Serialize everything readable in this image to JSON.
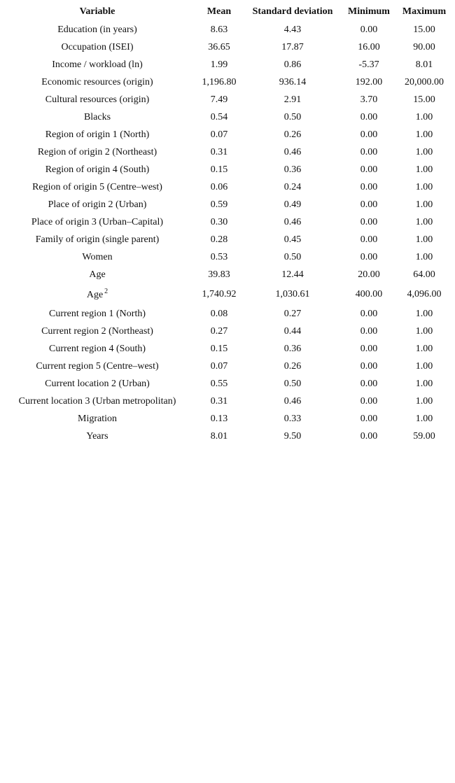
{
  "headers": [
    "Variable",
    "Mean",
    "Standard deviation",
    "Minimum",
    "Maximum"
  ],
  "rows": [
    {
      "variable": "Education (in years)",
      "mean": "8.63",
      "sd": "4.43",
      "min": "0.00",
      "max": "15.00"
    },
    {
      "variable": "Occupation (ISEI)",
      "mean": "36.65",
      "sd": "17.87",
      "min": "16.00",
      "max": "90.00"
    },
    {
      "variable": "Income / workload (ln)",
      "mean": "1.99",
      "sd": "0.86",
      "min": "-5.37",
      "max": "8.01"
    },
    {
      "variable": "Economic resources (origin)",
      "mean": "1,196.80",
      "sd": "936.14",
      "min": "192.00",
      "max": "20,000.00"
    },
    {
      "variable": "Cultural resources (origin)",
      "mean": "7.49",
      "sd": "2.91",
      "min": "3.70",
      "max": "15.00"
    },
    {
      "variable": "Blacks",
      "mean": "0.54",
      "sd": "0.50",
      "min": "0.00",
      "max": "1.00"
    },
    {
      "variable": "Region of origin 1 (North)",
      "mean": "0.07",
      "sd": "0.26",
      "min": "0.00",
      "max": "1.00"
    },
    {
      "variable": "Region of origin 2 (Northeast)",
      "mean": "0.31",
      "sd": "0.46",
      "min": "0.00",
      "max": "1.00"
    },
    {
      "variable": "Region of origin 4 (South)",
      "mean": "0.15",
      "sd": "0.36",
      "min": "0.00",
      "max": "1.00"
    },
    {
      "variable": "Region of origin 5 (Centre–west)",
      "mean": "0.06",
      "sd": "0.24",
      "min": "0.00",
      "max": "1.00"
    },
    {
      "variable": "Place of origin 2 (Urban)",
      "mean": "0.59",
      "sd": "0.49",
      "min": "0.00",
      "max": "1.00"
    },
    {
      "variable": "Place of origin 3 (Urban–Capital)",
      "mean": "0.30",
      "sd": "0.46",
      "min": "0.00",
      "max": "1.00"
    },
    {
      "variable": "Family of origin (single parent)",
      "mean": "0.28",
      "sd": "0.45",
      "min": "0.00",
      "max": "1.00"
    },
    {
      "variable": "Women",
      "mean": "0.53",
      "sd": "0.50",
      "min": "0.00",
      "max": "1.00"
    },
    {
      "variable": "Age",
      "mean": "39.83",
      "sd": "12.44",
      "min": "20.00",
      "max": "64.00"
    },
    {
      "variable": "Age",
      "superscript": "2",
      "mean": "1,740.92",
      "sd": "1,030.61",
      "min": "400.00",
      "max": "4,096.00"
    },
    {
      "variable": "Current region 1 (North)",
      "mean": "0.08",
      "sd": "0.27",
      "min": "0.00",
      "max": "1.00"
    },
    {
      "variable": "Current region 2 (Northeast)",
      "mean": "0.27",
      "sd": "0.44",
      "min": "0.00",
      "max": "1.00"
    },
    {
      "variable": "Current region 4 (South)",
      "mean": "0.15",
      "sd": "0.36",
      "min": "0.00",
      "max": "1.00"
    },
    {
      "variable": "Current region 5 (Centre–west)",
      "mean": "0.07",
      "sd": "0.26",
      "min": "0.00",
      "max": "1.00"
    },
    {
      "variable": "Current location 2 (Urban)",
      "mean": "0.55",
      "sd": "0.50",
      "min": "0.00",
      "max": "1.00"
    },
    {
      "variable": "Current location 3 (Urban metropolitan)",
      "mean": "0.31",
      "sd": "0.46",
      "min": "0.00",
      "max": "1.00"
    },
    {
      "variable": "Migration",
      "mean": "0.13",
      "sd": "0.33",
      "min": "0.00",
      "max": "1.00"
    },
    {
      "variable": "Years",
      "mean": "8.01",
      "sd": "9.50",
      "min": "0.00",
      "max": "59.00"
    }
  ]
}
